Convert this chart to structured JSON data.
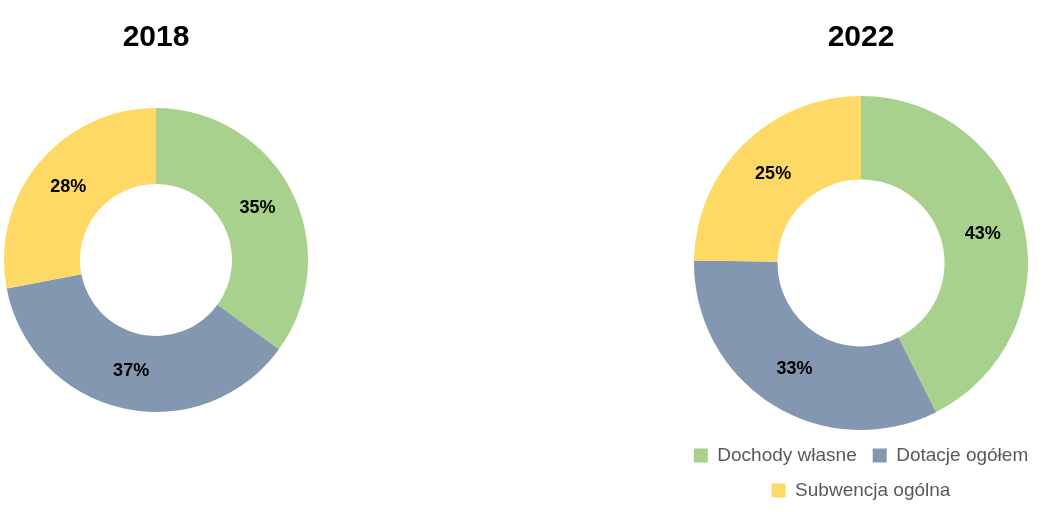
{
  "chart_data": [
    {
      "type": "donut",
      "title": "2018",
      "categories": [
        null,
        null,
        null
      ],
      "values": [
        35,
        37,
        28
      ],
      "colors": [
        "#a9d18e",
        "#8497b0",
        "#ffd966"
      ],
      "value_labels": [
        "35%",
        "37%",
        "28%"
      ],
      "legend": false
    },
    {
      "type": "donut",
      "title": "2022",
      "categories": [
        "Dochody własne",
        "Dotacje ogółem",
        "Subwencja ogólna"
      ],
      "values": [
        43,
        33,
        25
      ],
      "colors": [
        "#a9d18e",
        "#8497b0",
        "#ffd966"
      ],
      "value_labels": [
        "43%",
        "33%",
        "25%"
      ],
      "legend": "bottom"
    }
  ]
}
